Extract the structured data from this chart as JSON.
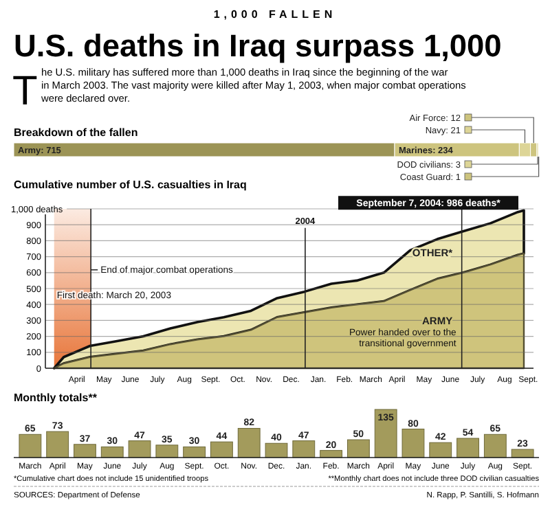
{
  "chart_data": [
    {
      "type": "other",
      "subtitle": "1,000 FALLEN",
      "title": "U.S. deaths in Iraq surpass 1,000",
      "annotations": [
        "The U.S. military has suffered more than 1,000 deaths in Iraq since the beginning of the war in March 2003. The vast majority were killed after May 1, 2003, when major combat operations were declared over."
      ]
    },
    {
      "type": "bar",
      "orientation": "horizontal",
      "stacked": true,
      "title": "Breakdown of the fallen",
      "categories": [
        null
      ],
      "legend": "top right",
      "series": [
        {
          "name": "Army:",
          "color": "#9c9456",
          "values": [
            715
          ],
          "value_labels": [
            "715"
          ]
        },
        {
          "name": "Marines:",
          "color": "#cdc47e",
          "values": [
            234
          ],
          "value_labels": [
            "234"
          ]
        },
        {
          "name": "Navy:",
          "color": "#ddd597",
          "values": [
            21
          ],
          "value_labels": [
            "21"
          ]
        },
        {
          "name": "Air Force:",
          "color": "#cdc47e",
          "values": [
            12
          ],
          "value_labels": [
            "12"
          ]
        },
        {
          "name": "DOD civilians:",
          "color": "#ddd597",
          "values": [
            3
          ],
          "value_labels": [
            "3"
          ]
        },
        {
          "name": "Coast Guard:",
          "color": "#cdc47e",
          "values": [
            1
          ],
          "value_labels": [
            "1"
          ]
        }
      ]
    },
    {
      "type": "area",
      "stacked": true,
      "title": "Cumulative number of U.S. casualties in Iraq",
      "x": [
        "2003-03-20",
        "2003-03-31",
        "2003-04-30",
        "2003-05-31",
        "2003-06-30",
        "2003-07-31",
        "2003-08-31",
        "2003-09-30",
        "2003-10-31",
        "2003-11-30",
        "2003-12-31",
        "2004-01-31",
        "2004-02-29",
        "2004-03-31",
        "2004-04-30",
        "2004-05-31",
        "2004-06-30",
        "2004-07-31",
        "2004-08-31",
        "2004-09-07"
      ],
      "series": [
        {
          "name": "ARMY",
          "color": "#cfc47c",
          "values": [
            0,
            30,
            70,
            90,
            110,
            150,
            180,
            200,
            240,
            320,
            350,
            380,
            400,
            420,
            490,
            560,
            600,
            650,
            710,
            720
          ]
        },
        {
          "name": "OTHER*",
          "color": "#ece6b2",
          "values": [
            0,
            40,
            70,
            80,
            90,
            100,
            110,
            120,
            120,
            120,
            130,
            150,
            150,
            180,
            250,
            250,
            260,
            260,
            270,
            270
          ]
        }
      ],
      "xlim": [
        "2003-03-10",
        "2004-09-18"
      ],
      "xticks": [
        {
          "value": "2003-04-15",
          "label": "April"
        },
        {
          "value": "2003-05-16",
          "label": "May"
        },
        {
          "value": "2003-06-15",
          "label": "June"
        },
        {
          "value": "2003-07-16",
          "label": "July"
        },
        {
          "value": "2003-08-16",
          "label": "Aug"
        },
        {
          "value": "2003-09-15",
          "label": "Sept."
        },
        {
          "value": "2003-10-16",
          "label": "Oct."
        },
        {
          "value": "2003-11-15",
          "label": "Nov."
        },
        {
          "value": "2003-12-16",
          "label": "Dec."
        },
        {
          "value": "2004-01-16",
          "label": "Jan."
        },
        {
          "value": "2004-02-15",
          "label": "Feb."
        },
        {
          "value": "2004-03-16",
          "label": "March"
        },
        {
          "value": "2004-04-15",
          "label": "April"
        },
        {
          "value": "2004-05-16",
          "label": "May"
        },
        {
          "value": "2004-06-15",
          "label": "June"
        },
        {
          "value": "2004-07-16",
          "label": "July"
        },
        {
          "value": "2004-08-16",
          "label": "Aug"
        },
        {
          "value": "2004-09-12",
          "label": "Sept."
        }
      ],
      "ylim": [
        0,
        1000
      ],
      "yticks": [
        0,
        100,
        200,
        300,
        400,
        500,
        600,
        700,
        800,
        900,
        {
          "value": 1000,
          "label": "1,000 deaths"
        }
      ],
      "grid": "y",
      "bands": [
        {
          "axis": "x",
          "from": "2003-03-20",
          "to": "2003-05-01",
          "label": "First death: March 20, 2003",
          "color": "#e8763a"
        }
      ],
      "ref_lines": [
        {
          "axis": "x",
          "value": "2003-05-01",
          "label": "End of major combat operations"
        },
        {
          "axis": "x",
          "value": "2004-01-01",
          "label": "2004"
        },
        {
          "axis": "x",
          "value": "2004-06-28",
          "label": "Power handed over to the transitional government"
        }
      ],
      "annotations": [
        {
          "text": "September 7, 2004: 986 deaths*",
          "x": "2004-09-07",
          "y": 986
        }
      ]
    },
    {
      "type": "bar",
      "title": "Monthly totals**",
      "color": "#a39b5c",
      "data_labels": true,
      "categories": [
        "March",
        "April",
        "May",
        "June",
        "July",
        "Aug",
        "Sept.",
        "Oct.",
        "Nov.",
        "Dec.",
        "Jan.",
        "Feb.",
        "March",
        "April",
        "May",
        "June",
        "July",
        "Aug",
        "Sept."
      ],
      "values": [
        65,
        73,
        37,
        30,
        47,
        35,
        30,
        44,
        82,
        40,
        47,
        20,
        50,
        135,
        80,
        42,
        54,
        65,
        23
      ],
      "annotations": [
        "*Cumulative chart does not include 15 unidentified troops",
        "**Monthly chart does not include three DOD civilian casualties",
        "SOURCES: Department of Defense",
        "N. Rapp, P. Santilli, S. Hofmann"
      ]
    }
  ]
}
